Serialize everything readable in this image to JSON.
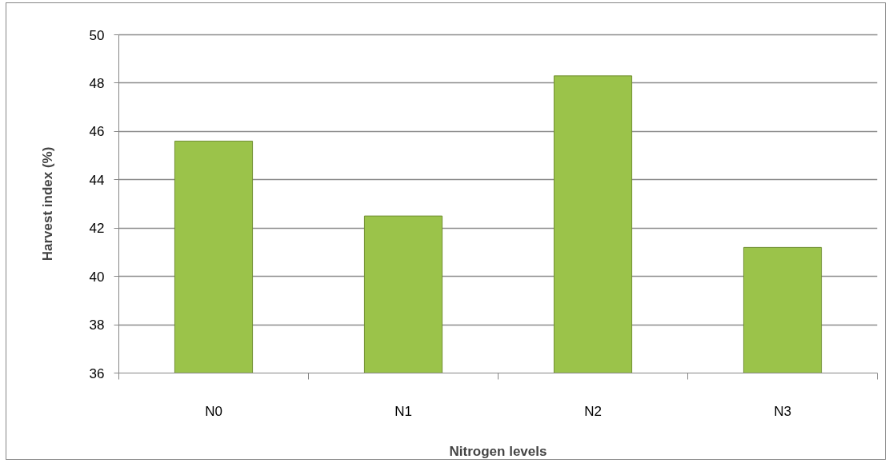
{
  "chart_data": {
    "type": "bar",
    "xlabel": "Nitrogen levels",
    "ylabel": "Harvest index (%)",
    "categories": [
      "N0",
      "N1",
      "N2",
      "N3"
    ],
    "values": [
      45.6,
      42.5,
      48.3,
      41.2
    ],
    "color": "#9bc34a",
    "ylim": [
      36,
      50
    ],
    "yticks": [
      36,
      38,
      40,
      42,
      44,
      46,
      48,
      50
    ],
    "grid": "y"
  }
}
